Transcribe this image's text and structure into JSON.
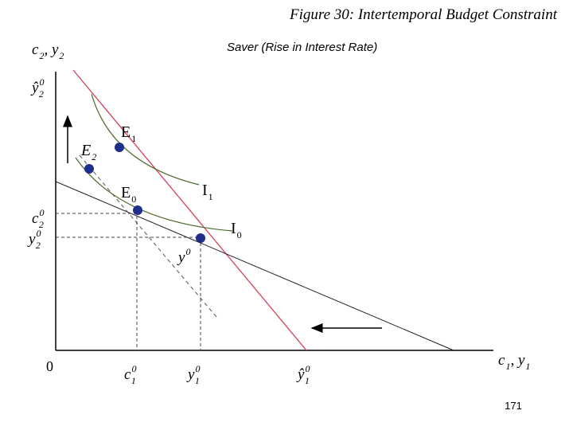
{
  "title": "Figure 30: Intertemporal Budget Constraint",
  "subtitle": "Saver (Rise in Interest Rate)",
  "page_number": "171",
  "labels": [
    [
      {
        "base": "c",
        "sub": "2"
      },
      {
        "base": ", y",
        "sub": "2"
      }
    ],
    [
      {
        "base": "ŷ",
        "sub": "2",
        "sup": "0"
      }
    ],
    [
      {
        "base": "E",
        "sub": "1"
      }
    ],
    [
      {
        "base": "E",
        "sub": "2"
      }
    ],
    [
      {
        "base": "E",
        "sub": "0"
      }
    ],
    [
      {
        "base": "I",
        "sub": "1"
      }
    ],
    [
      {
        "base": "c",
        "sub": "2",
        "sup": "0"
      }
    ],
    [
      {
        "base": "y",
        "sub": "2",
        "sup": "0"
      }
    ],
    [
      {
        "base": "I",
        "sub": "0"
      }
    ],
    [
      {
        "base": "y",
        "sup": "0"
      }
    ],
    [
      {
        "base": "0"
      }
    ],
    [
      {
        "base": "c",
        "sub": "1",
        "sup": "0"
      }
    ],
    [
      {
        "base": "y",
        "sub": "1",
        "sup": "0"
      }
    ],
    [
      {
        "base": "ŷ",
        "sub": "1",
        "sup": "0"
      }
    ],
    [
      {
        "base": "c",
        "sub": "1"
      },
      {
        "base": ", y",
        "sub": "1"
      }
    ]
  ]
}
